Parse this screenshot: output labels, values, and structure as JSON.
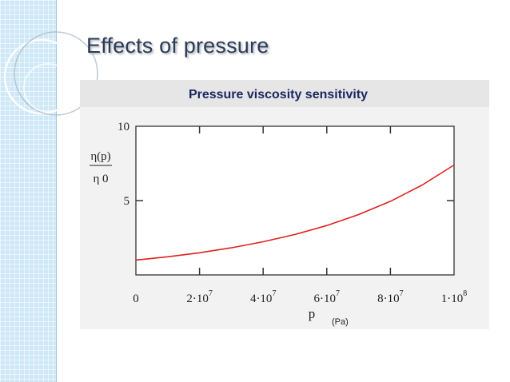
{
  "slide": {
    "title": "Effects of pressure"
  },
  "chart_data": {
    "type": "line",
    "title": "Pressure viscosity sensitivity",
    "ylabel": {
      "top": "η(p)",
      "bottom": "η 0"
    },
    "xlabel": "p",
    "xunit": "(Pa)",
    "xlim": [
      0,
      100000000
    ],
    "ylim": [
      0,
      10
    ],
    "x_ticks": [
      {
        "value": 0,
        "mantissa": "0",
        "exp": ""
      },
      {
        "value": 20000000,
        "mantissa": "2·10",
        "exp": "7"
      },
      {
        "value": 40000000,
        "mantissa": "4·10",
        "exp": "7"
      },
      {
        "value": 60000000,
        "mantissa": "6·10",
        "exp": "7"
      },
      {
        "value": 80000000,
        "mantissa": "8·10",
        "exp": "7"
      },
      {
        "value": 100000000,
        "mantissa": "1·10",
        "exp": "8"
      }
    ],
    "y_ticks": [
      {
        "value": 5,
        "label": "5"
      },
      {
        "value": 10,
        "label": "10"
      }
    ],
    "grid": false,
    "legend": "none",
    "series": [
      {
        "color": "#e0201c",
        "x": [
          0,
          10000000,
          20000000,
          30000000,
          40000000,
          50000000,
          60000000,
          70000000,
          80000000,
          90000000,
          100000000
        ],
        "y": [
          1.0,
          1.22,
          1.49,
          1.82,
          2.23,
          2.72,
          3.32,
          4.06,
          4.95,
          6.05,
          7.39
        ]
      }
    ]
  }
}
